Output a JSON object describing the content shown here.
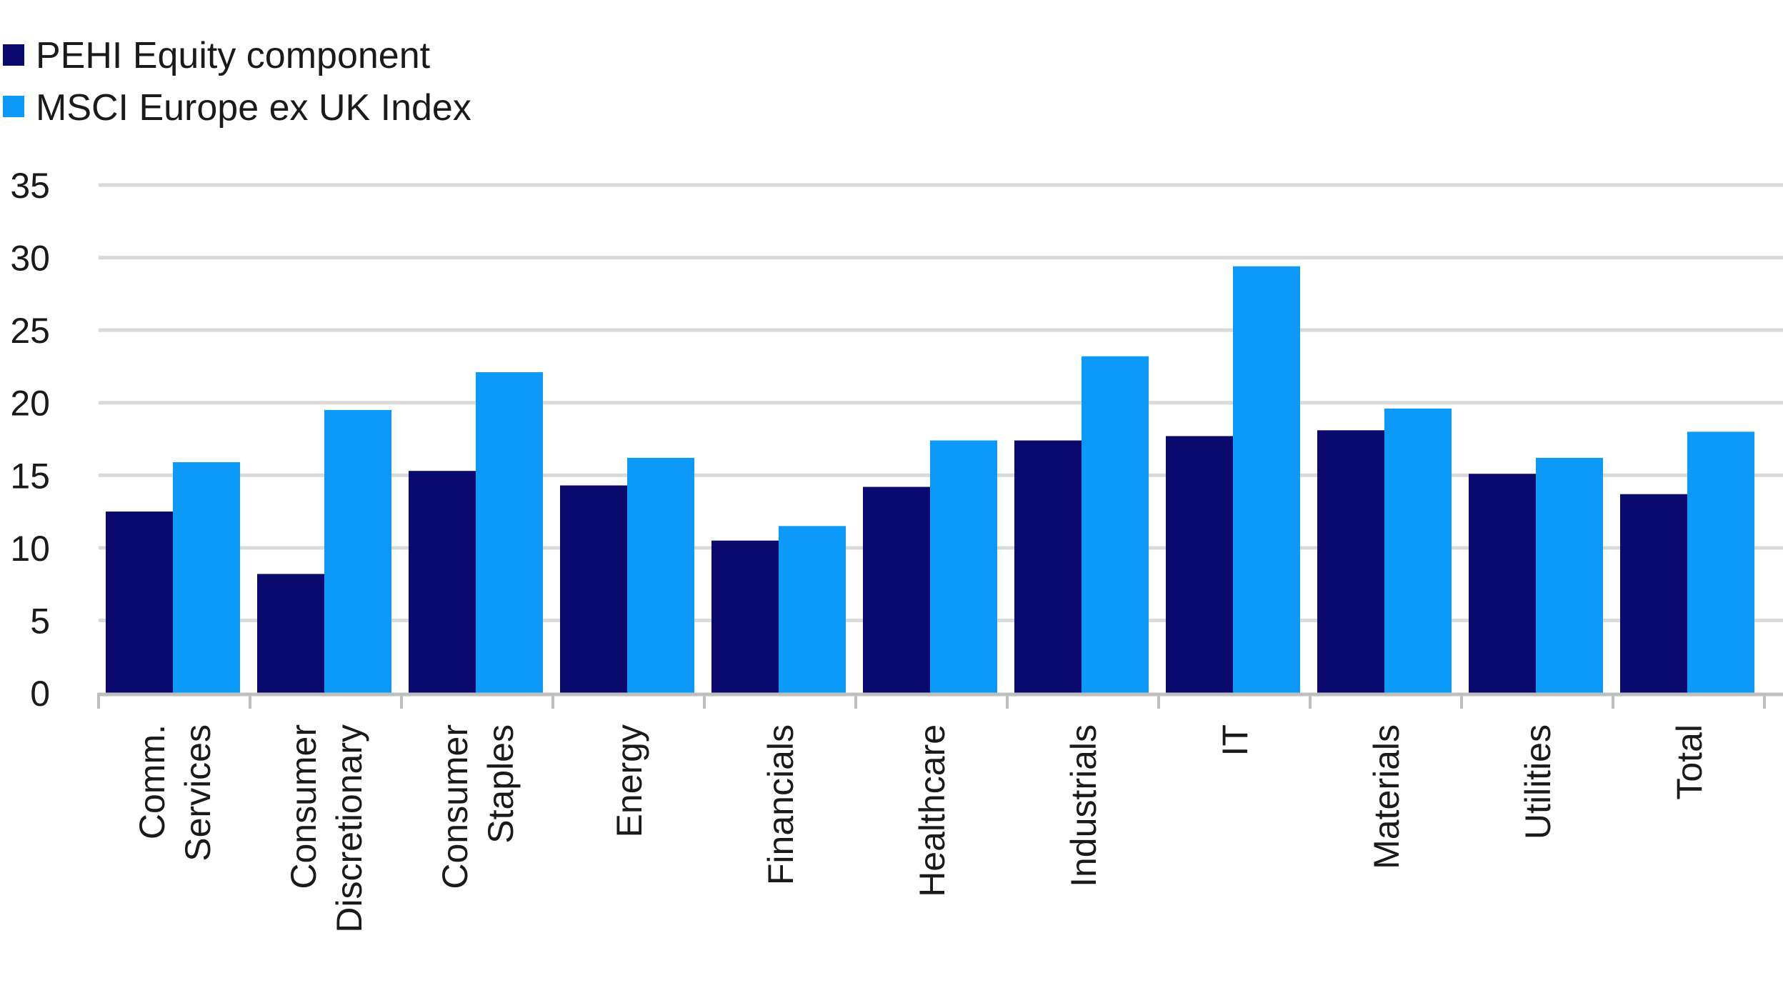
{
  "chart_data": {
    "type": "bar",
    "categories": [
      [
        "Comm.",
        "Services"
      ],
      [
        "Consumer",
        "Discretionary"
      ],
      [
        "Consumer",
        "Staples"
      ],
      [
        "Energy"
      ],
      [
        "Financials"
      ],
      [
        "Healthcare"
      ],
      [
        "Industrials"
      ],
      [
        "IT"
      ],
      [
        "Materials"
      ],
      [
        "Utilities"
      ],
      [
        "Total"
      ]
    ],
    "series": [
      {
        "name": "PEHI Equity component",
        "color": "#0a0a6e",
        "values": [
          12.5,
          8.2,
          15.3,
          14.3,
          10.5,
          14.2,
          17.4,
          17.7,
          18.1,
          15.1,
          13.7
        ]
      },
      {
        "name": "MSCI Europe ex UK Index",
        "color": "#0d99f7",
        "values": [
          15.9,
          19.5,
          22.1,
          16.2,
          11.5,
          17.4,
          23.2,
          29.4,
          19.6,
          16.2,
          18.0
        ]
      }
    ],
    "title": "",
    "xlabel": "",
    "ylabel": "",
    "ylim": [
      0,
      35
    ],
    "yticks": [
      0,
      5,
      10,
      15,
      20,
      25,
      30,
      35
    ],
    "grid": true,
    "legend_position": "top-left",
    "gridline_color": "#d9d9d9",
    "axis_color": "#bfbfbf"
  }
}
